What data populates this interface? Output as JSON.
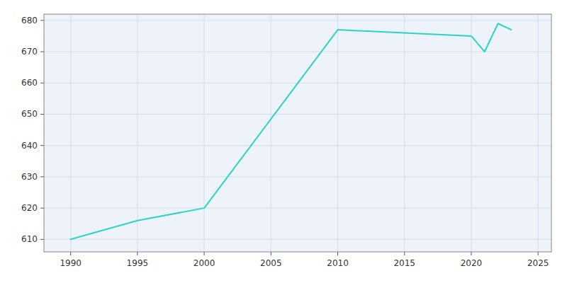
{
  "chart_data": {
    "type": "line",
    "x": [
      1990,
      1995,
      2000,
      2010,
      2015,
      2020,
      2021,
      2022,
      2023
    ],
    "values": [
      610,
      616,
      620,
      677,
      676,
      675,
      670,
      679,
      677
    ],
    "color": "#2DD4BF",
    "xlim": [
      1988,
      2026
    ],
    "ylim": [
      606,
      682
    ],
    "xticks": [
      1990,
      1995,
      2000,
      2005,
      2010,
      2015,
      2020,
      2025
    ],
    "yticks": [
      610,
      620,
      630,
      640,
      650,
      660,
      670,
      680
    ],
    "grid": true
  }
}
